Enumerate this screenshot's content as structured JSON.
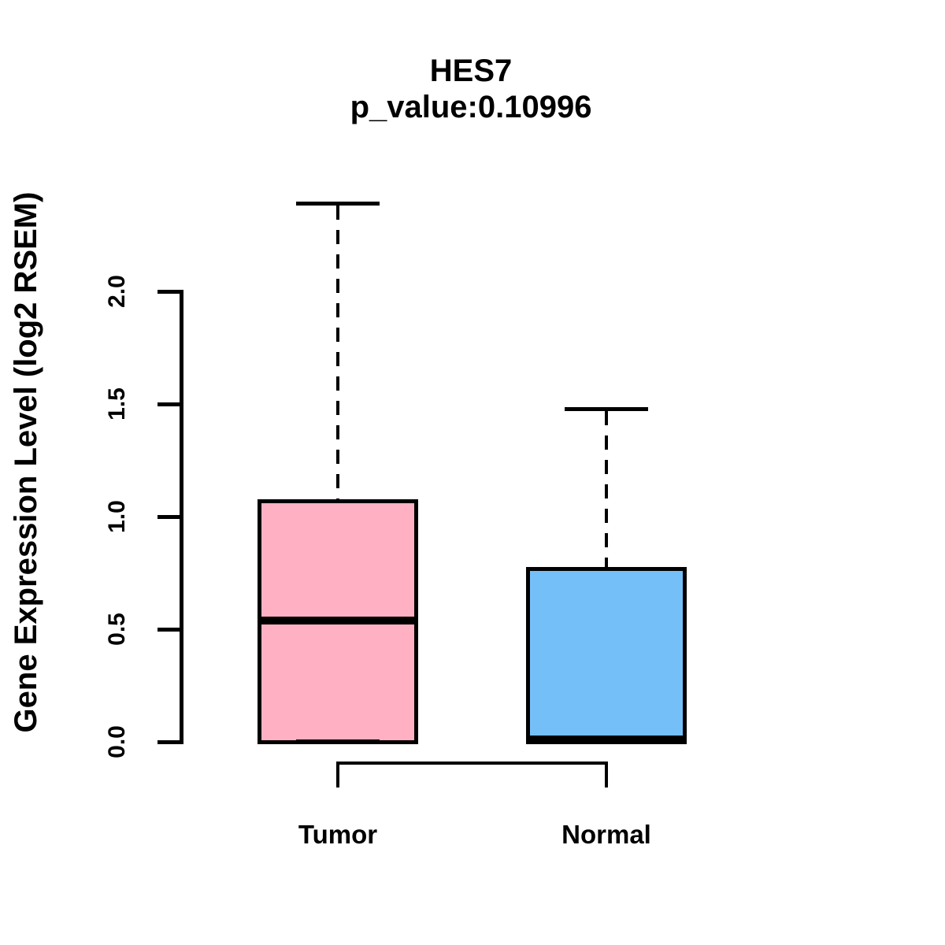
{
  "header": {
    "title": "HES7",
    "subtitle": "p_value:0.10996"
  },
  "y_axis": {
    "label": "Gene Expression Level (log2 RSEM)",
    "tick_labels": [
      "0.0",
      "0.5",
      "1.0",
      "1.5",
      "2.0"
    ]
  },
  "x_labels": [
    "Tumor",
    "Normal"
  ],
  "colors": {
    "tumor_fill": "#FFB0C2",
    "normal_fill": "#74BFF8",
    "stroke": "#000000",
    "background": "#FFFFFF"
  },
  "chart_data": {
    "type": "boxplot",
    "title": "HES7",
    "subtitle": "p_value:0.10996",
    "ylabel": "Gene Expression Level (log2 RSEM)",
    "xlabel": "",
    "ylim": [
      0,
      2.5
    ],
    "y_ticks": [
      0,
      0.5,
      1.0,
      1.5,
      2.0
    ],
    "grid": false,
    "legend": "none",
    "groups": [
      {
        "label": "Tumor",
        "fill": "#FFB0C2",
        "min": 0,
        "q1": 0,
        "median": 0.54,
        "q3": 1.07,
        "max": 2.39,
        "outliers": []
      },
      {
        "label": "Normal",
        "fill": "#74BFF8",
        "min": 0,
        "q1": 0,
        "median": 0.01,
        "q3": 0.77,
        "max": 1.48,
        "outliers": []
      }
    ],
    "annotation_bracket": {
      "from": "Tumor",
      "to": "Normal",
      "p_value": 0.10996
    }
  }
}
